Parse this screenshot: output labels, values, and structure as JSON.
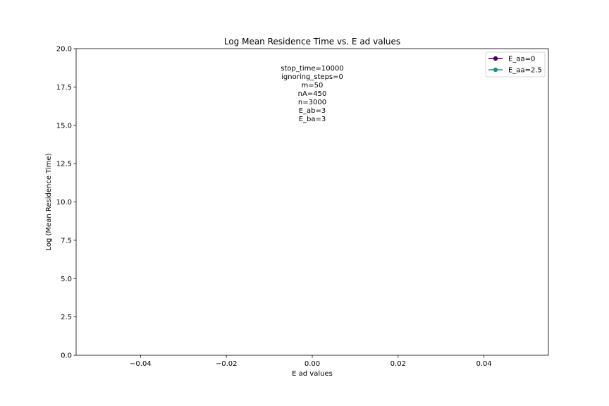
{
  "chart_data": {
    "type": "line",
    "title": "Log Mean Residence Time vs. E ad values",
    "xlabel": "E ad values",
    "ylabel": "Log (Mean Residence Time)",
    "xlim": [
      -0.055,
      0.055
    ],
    "ylim": [
      0,
      20
    ],
    "xticks": [
      -0.04,
      -0.02,
      0.0,
      0.02,
      0.04
    ],
    "xtick_labels": [
      "−0.04",
      "−0.02",
      "0.00",
      "0.02",
      "0.04"
    ],
    "yticks": [
      0,
      2.5,
      5,
      7.5,
      10,
      12.5,
      15,
      17.5,
      20
    ],
    "ytick_labels": [
      "0.0",
      "2.5",
      "5.0",
      "7.5",
      "10.0",
      "12.5",
      "15.0",
      "17.5",
      "20.0"
    ],
    "grid": false,
    "legend_position": "top-right",
    "series": [
      {
        "name": "E_aa=0",
        "color": "#440154",
        "marker": "circle",
        "x": [],
        "y": []
      },
      {
        "name": "E_aa=2.5",
        "color": "#21918c",
        "marker": "circle",
        "x": [],
        "y": []
      }
    ],
    "annotation_lines": [
      "stop_time=10000",
      "ignoring_steps=0",
      "m=50",
      "nA=450",
      "n=3000",
      "E_ab=3",
      "E_ba=3"
    ]
  }
}
